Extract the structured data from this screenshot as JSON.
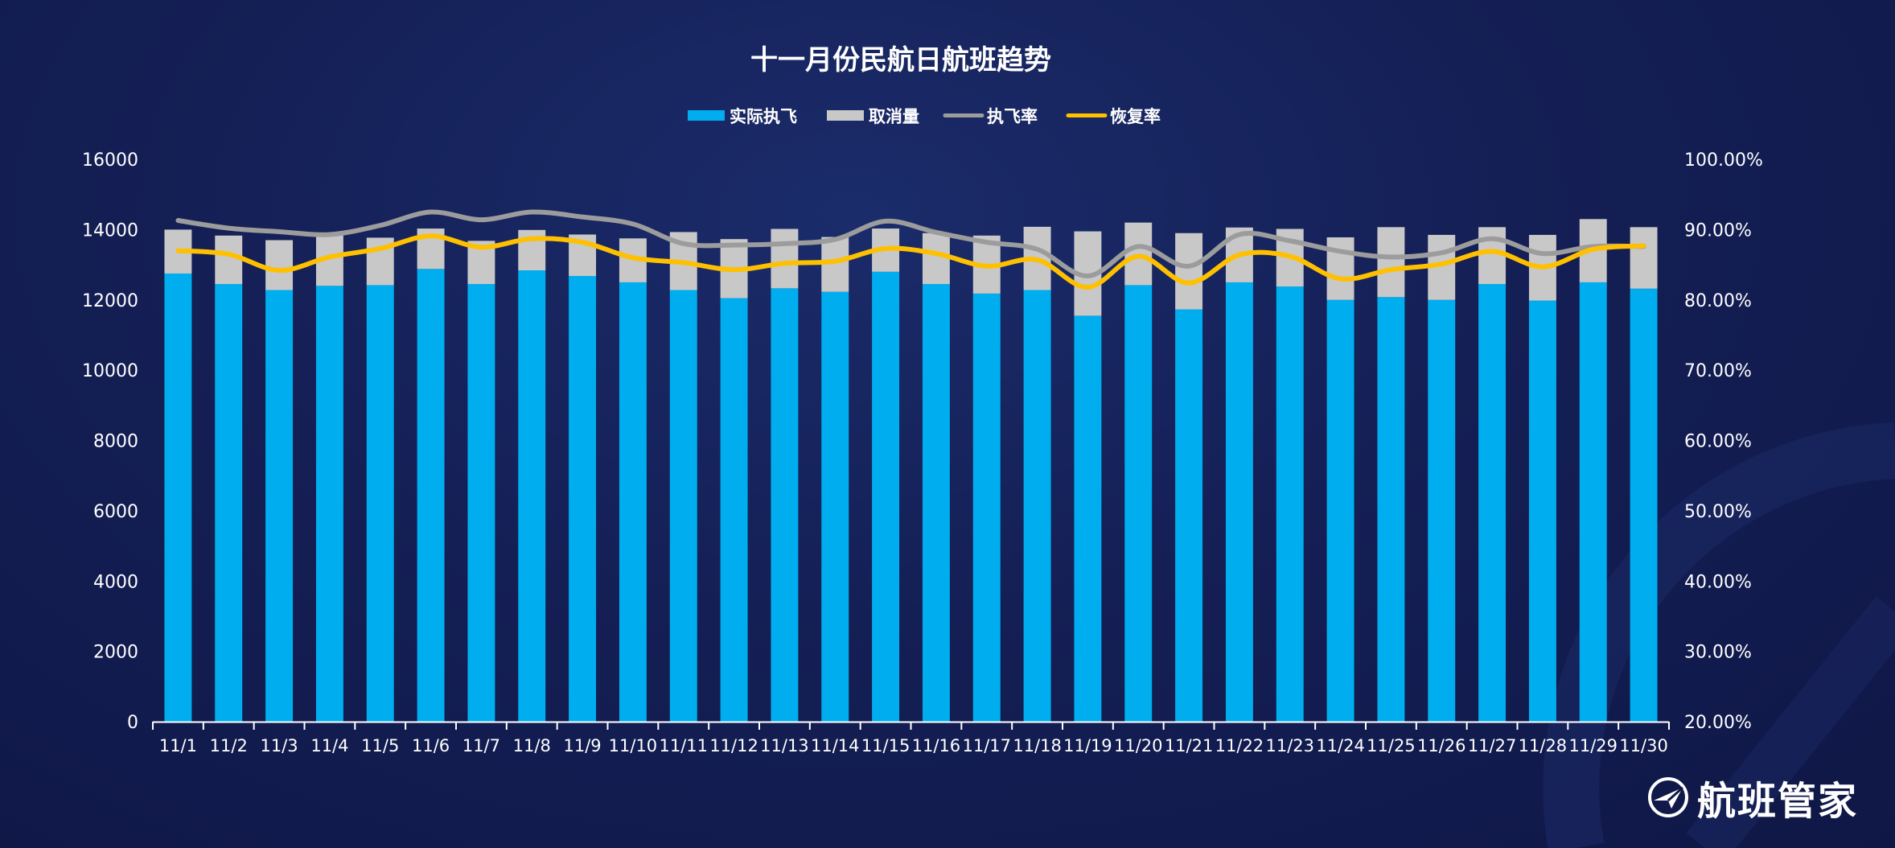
{
  "colors": {
    "executed": "#00aef0",
    "cancelled": "#c8c8c8",
    "exec_rate": "#9c9c9c",
    "recovery_rate": "#ffc000",
    "axis_text": "#ffffff"
  },
  "brand": {
    "name": "航班管家",
    "icon": "airline-logo-icon"
  },
  "chart_data": {
    "type": "bar",
    "stacked": true,
    "title": "十一月份民航日航班趋势",
    "legend_position": "top",
    "grid": false,
    "categories": [
      "11/1",
      "11/2",
      "11/3",
      "11/4",
      "11/5",
      "11/6",
      "11/7",
      "11/8",
      "11/9",
      "11/10",
      "11/11",
      "11/12",
      "11/13",
      "11/14",
      "11/15",
      "11/16",
      "11/17",
      "11/18",
      "11/19",
      "11/20",
      "11/21",
      "11/22",
      "11/23",
      "11/24",
      "11/25",
      "11/26",
      "11/27",
      "11/28",
      "11/29",
      "11/30"
    ],
    "series": [
      {
        "name": "实际执飞",
        "type": "bar",
        "axis": "left",
        "values": [
          12750,
          12450,
          12280,
          12400,
          12420,
          12880,
          12450,
          12840,
          12680,
          12500,
          12280,
          12050,
          12330,
          12230,
          12800,
          12450,
          12180,
          12280,
          11550,
          12420,
          11730,
          12500,
          12380,
          12000,
          12080,
          12000,
          12450,
          11980,
          12500,
          12320
        ]
      },
      {
        "name": "取消量",
        "type": "bar",
        "axis": "left",
        "values": [
          1250,
          1380,
          1420,
          1450,
          1350,
          1150,
          1230,
          1150,
          1180,
          1250,
          1650,
          1680,
          1690,
          1560,
          1230,
          1450,
          1650,
          1800,
          2400,
          1780,
          2170,
          1560,
          1640,
          1780,
          1990,
          1850,
          1620,
          1870,
          1800,
          1750
        ]
      },
      {
        "name": "执飞率",
        "type": "line",
        "axis": "right",
        "values": [
          0.913,
          0.902,
          0.897,
          0.893,
          0.906,
          0.925,
          0.914,
          0.925,
          0.918,
          0.908,
          0.88,
          0.878,
          0.88,
          0.886,
          0.912,
          0.896,
          0.882,
          0.872,
          0.834,
          0.876,
          0.848,
          0.893,
          0.884,
          0.869,
          0.861,
          0.867,
          0.887,
          0.866,
          0.876,
          0.876
        ]
      },
      {
        "name": "恢复率",
        "type": "line",
        "axis": "right",
        "values": [
          0.87,
          0.865,
          0.842,
          0.861,
          0.873,
          0.891,
          0.875,
          0.887,
          0.882,
          0.86,
          0.853,
          0.843,
          0.852,
          0.855,
          0.873,
          0.866,
          0.848,
          0.857,
          0.818,
          0.862,
          0.824,
          0.864,
          0.862,
          0.83,
          0.843,
          0.851,
          0.869,
          0.847,
          0.872,
          0.877
        ]
      }
    ],
    "ylim_left": [
      0,
      16000
    ],
    "yticks_left": [
      "0",
      "2000",
      "4000",
      "6000",
      "8000",
      "10000",
      "12000",
      "14000",
      "16000"
    ],
    "ylim_right": [
      0.2,
      1.0
    ],
    "yticks_right": [
      "20.00%",
      "30.00%",
      "40.00%",
      "50.00%",
      "60.00%",
      "70.00%",
      "80.00%",
      "90.00%",
      "100.00%"
    ]
  }
}
